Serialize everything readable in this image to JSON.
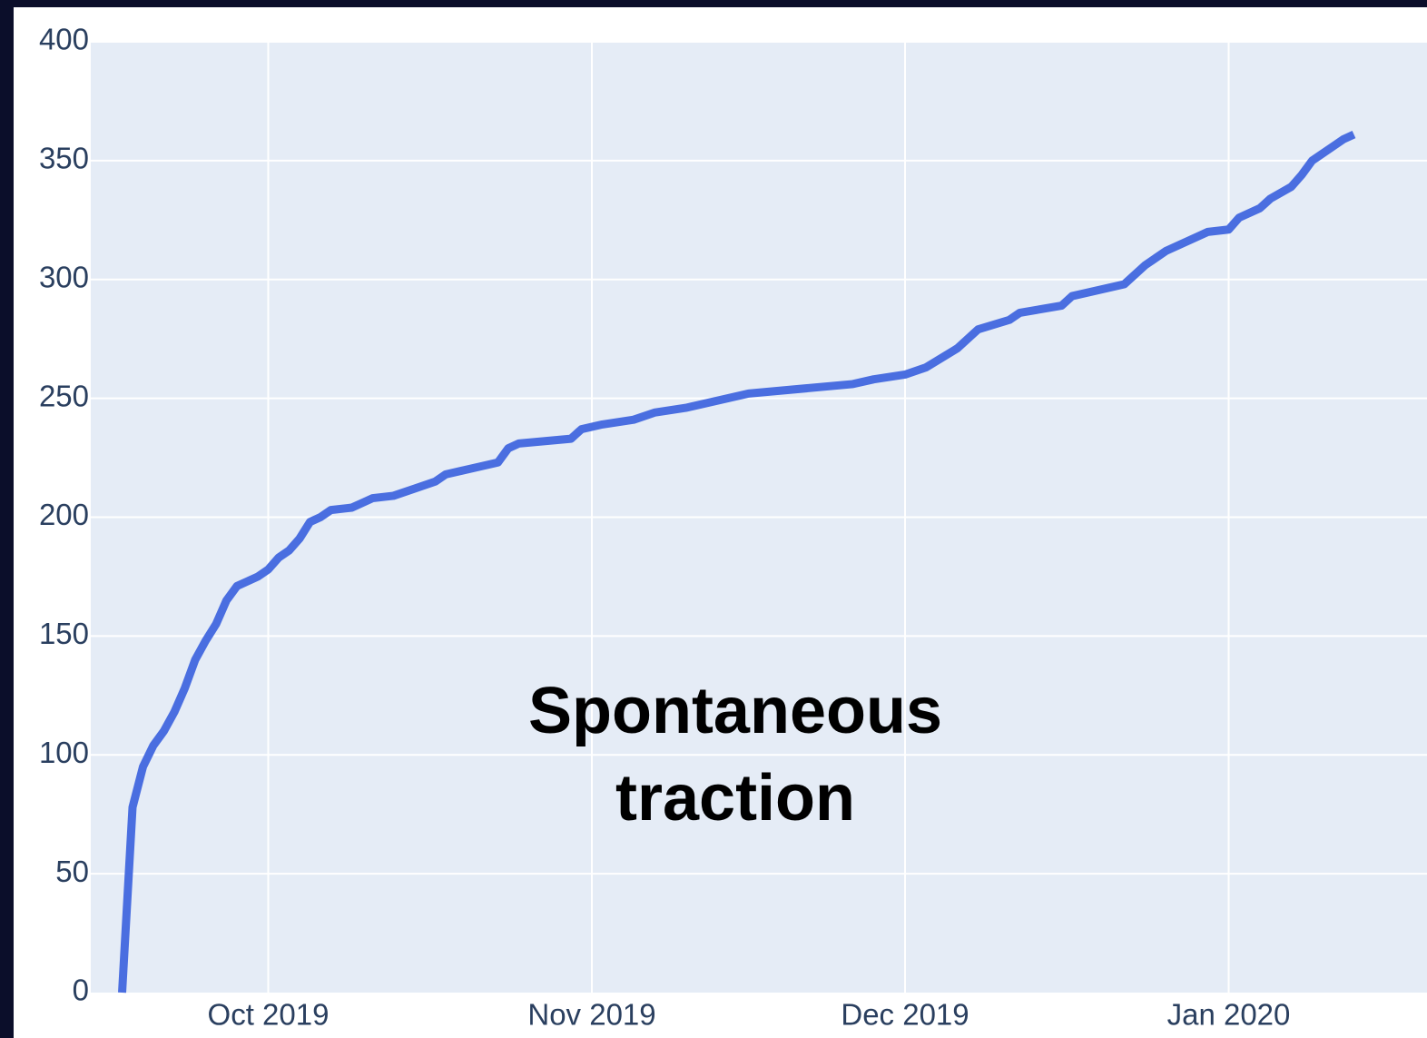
{
  "chart_data": {
    "type": "line",
    "annotation": "Spontaneous traction",
    "x": [
      "2019-09-17",
      "2019-09-18",
      "2019-09-19",
      "2019-09-20",
      "2019-09-21",
      "2019-09-22",
      "2019-09-23",
      "2019-09-24",
      "2019-09-25",
      "2019-09-26",
      "2019-09-27",
      "2019-09-28",
      "2019-09-29",
      "2019-09-30",
      "2019-10-01",
      "2019-10-02",
      "2019-10-03",
      "2019-10-04",
      "2019-10-05",
      "2019-10-06",
      "2019-10-07",
      "2019-10-09",
      "2019-10-10",
      "2019-10-11",
      "2019-10-13",
      "2019-10-15",
      "2019-10-17",
      "2019-10-18",
      "2019-10-20",
      "2019-10-22",
      "2019-10-23",
      "2019-10-24",
      "2019-10-25",
      "2019-10-30",
      "2019-10-31",
      "2019-11-02",
      "2019-11-05",
      "2019-11-07",
      "2019-11-10",
      "2019-11-16",
      "2019-11-26",
      "2019-11-28",
      "2019-12-01",
      "2019-12-03",
      "2019-12-06",
      "2019-12-08",
      "2019-12-11",
      "2019-12-12",
      "2019-12-16",
      "2019-12-17",
      "2019-12-22",
      "2019-12-24",
      "2019-12-26",
      "2019-12-30",
      "2020-01-01",
      "2020-01-02",
      "2020-01-04",
      "2020-01-05",
      "2020-01-07",
      "2020-01-08",
      "2020-01-09",
      "2020-01-11",
      "2020-01-12",
      "2020-01-13"
    ],
    "series": [
      {
        "color": "#4a6ee0",
        "values": [
          0,
          78,
          95,
          104,
          110,
          118,
          128,
          140,
          148,
          155,
          165,
          171,
          173,
          175,
          178,
          183,
          186,
          191,
          198,
          200,
          203,
          204,
          206,
          208,
          209,
          212,
          215,
          218,
          220,
          222,
          223,
          229,
          231,
          233,
          237,
          239,
          241,
          244,
          246,
          252,
          256,
          258,
          260,
          263,
          271,
          279,
          283,
          286,
          289,
          293,
          298,
          306,
          312,
          320,
          321,
          326,
          330,
          334,
          339,
          344,
          350,
          356,
          359,
          361
        ]
      }
    ],
    "xlim": [
      "2019-09-14",
      "2020-01-20"
    ],
    "xticks": [
      {
        "value": "2019-10-01",
        "label": "Oct 2019"
      },
      {
        "value": "2019-11-01",
        "label": "Nov 2019"
      },
      {
        "value": "2019-12-01",
        "label": "Dec 2019"
      },
      {
        "value": "2020-01-01",
        "label": "Jan 2020"
      }
    ],
    "ylim": [
      0,
      400
    ],
    "yticks": [
      0,
      50,
      100,
      150,
      200,
      250,
      300,
      350,
      400
    ],
    "grid": true
  }
}
